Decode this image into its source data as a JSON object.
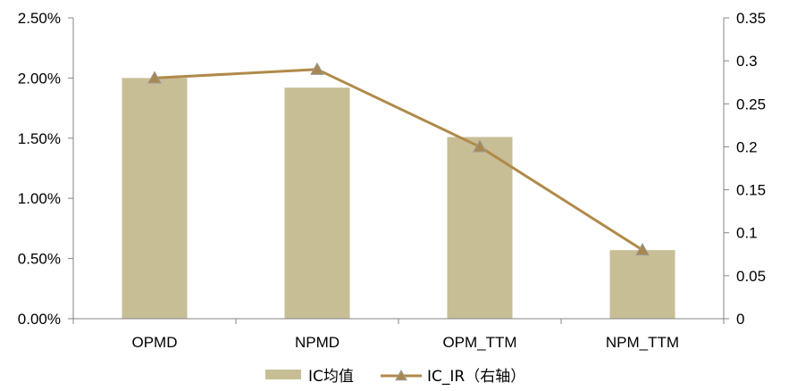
{
  "chart_data": {
    "type": "bar",
    "categories": [
      "OPMD",
      "NPMD",
      "OPM_TTM",
      "NPM_TTM"
    ],
    "series": [
      {
        "name": "IC均值",
        "type": "bar",
        "axis": "left",
        "values": [
          0.02,
          0.0192,
          0.0151,
          0.0057
        ]
      },
      {
        "name": "IC_IR（右轴）",
        "type": "line",
        "axis": "right",
        "marker": "triangle",
        "values": [
          0.28,
          0.29,
          0.2,
          0.08
        ]
      }
    ],
    "left_axis": {
      "ylim": [
        0,
        0.025
      ],
      "ticks": [
        0,
        0.005,
        0.01,
        0.015,
        0.02,
        0.025
      ],
      "tick_labels": [
        "0.00%",
        "0.50%",
        "1.00%",
        "1.50%",
        "2.00%",
        "2.50%"
      ]
    },
    "right_axis": {
      "ylim": [
        0,
        0.35
      ],
      "ticks": [
        0,
        0.05,
        0.1,
        0.15,
        0.2,
        0.25,
        0.3,
        0.35
      ],
      "tick_labels": [
        "0",
        "0.05",
        "0.1",
        "0.15",
        "0.2",
        "0.25",
        "0.3",
        "0.35"
      ]
    },
    "title": "",
    "xlabel": "",
    "ylabel": "",
    "grid": false,
    "legend_position": "bottom",
    "colors": {
      "bar": "#C8BE96",
      "line": "#B08A4A",
      "marker": "#A88850",
      "axis": "#868686"
    }
  }
}
